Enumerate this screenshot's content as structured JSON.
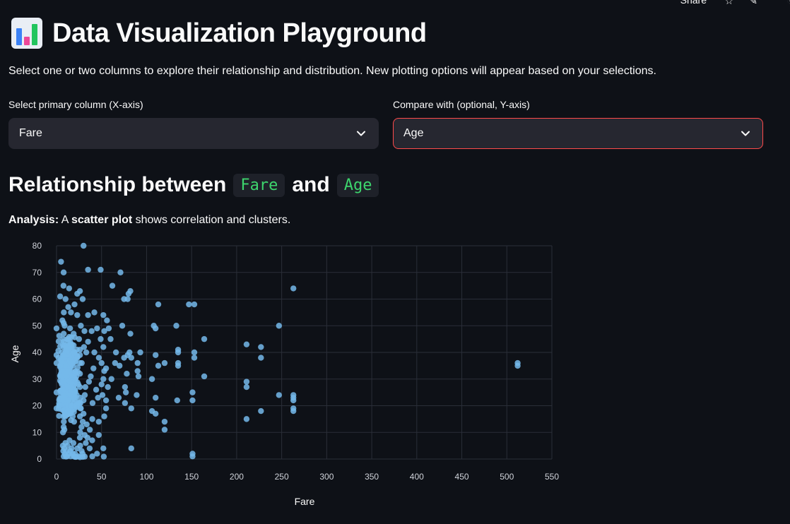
{
  "header": {
    "share_label": "Share",
    "title": "Data Visualization Playground"
  },
  "description": "Select one or two columns to explore their relationship and distribution. New plotting options will appear based on your selections.",
  "primary_select": {
    "label": "Select primary column (X-axis)",
    "value": "Fare"
  },
  "compare_select": {
    "label": "Compare with (optional, Y-axis)",
    "value": "Age"
  },
  "relationship": {
    "prefix": "Relationship between",
    "x_col": "Fare",
    "joiner": "and",
    "y_col": "Age"
  },
  "analysis": {
    "label": "Analysis:",
    "text_before": " A ",
    "emphasis": "scatter plot",
    "text_after": " shows correlation and clusters."
  },
  "colors": {
    "accent_border": "#ff4b4b",
    "code_text": "#3dd56d",
    "point": "#74b9ea",
    "grid": "#2a2e38"
  },
  "chart_data": {
    "type": "scatter",
    "xlabel": "Fare",
    "ylabel": "Age",
    "xlim": [
      0,
      550
    ],
    "ylim": [
      0,
      80
    ],
    "x_ticks": [
      0,
      50,
      100,
      150,
      200,
      250,
      300,
      350,
      400,
      450,
      500,
      550
    ],
    "y_ticks": [
      0,
      10,
      20,
      30,
      40,
      50,
      60,
      70,
      80
    ],
    "points": [
      [
        512,
        35
      ],
      [
        512,
        36
      ],
      [
        263,
        64
      ],
      [
        263,
        24
      ],
      [
        263,
        23
      ],
      [
        263,
        22
      ],
      [
        263,
        19
      ],
      [
        263,
        18
      ],
      [
        247,
        50
      ],
      [
        247,
        24
      ],
      [
        227,
        42
      ],
      [
        227,
        38
      ],
      [
        227,
        18
      ],
      [
        211,
        43
      ],
      [
        211,
        29
      ],
      [
        211,
        27
      ],
      [
        211,
        15
      ],
      [
        164,
        45
      ],
      [
        164,
        31
      ],
      [
        153,
        58
      ],
      [
        153,
        40
      ],
      [
        153,
        38
      ],
      [
        151,
        25
      ],
      [
        151,
        22
      ],
      [
        151,
        2
      ],
      [
        151,
        1
      ],
      [
        147,
        58
      ],
      [
        135,
        41
      ],
      [
        135,
        40
      ],
      [
        135,
        36
      ],
      [
        135,
        35
      ],
      [
        134,
        22
      ],
      [
        133,
        50
      ],
      [
        120,
        36
      ],
      [
        120,
        14
      ],
      [
        120,
        11
      ],
      [
        113,
        58
      ],
      [
        113,
        35
      ],
      [
        110,
        49
      ],
      [
        110,
        39
      ],
      [
        110,
        23
      ],
      [
        110,
        17
      ],
      [
        108,
        50
      ],
      [
        106,
        30
      ],
      [
        106,
        18
      ],
      [
        93,
        40
      ],
      [
        91,
        31
      ],
      [
        90,
        36
      ],
      [
        90,
        33
      ],
      [
        89,
        24
      ],
      [
        83,
        4
      ],
      [
        83,
        38
      ],
      [
        83,
        19
      ],
      [
        82,
        63
      ],
      [
        82,
        47
      ],
      [
        81,
        40
      ],
      [
        80,
        62
      ],
      [
        79,
        60
      ],
      [
        79,
        39
      ],
      [
        78,
        32
      ],
      [
        77,
        25
      ],
      [
        76,
        21
      ],
      [
        76,
        27
      ],
      [
        75,
        60
      ],
      [
        75,
        38
      ],
      [
        73,
        50
      ],
      [
        71,
        70
      ],
      [
        70,
        35
      ],
      [
        69,
        23
      ],
      [
        66,
        40
      ],
      [
        65,
        36
      ],
      [
        62,
        65
      ],
      [
        61,
        30
      ],
      [
        60,
        45
      ],
      [
        58,
        49
      ],
      [
        57,
        27
      ],
      [
        56,
        52
      ],
      [
        55,
        34
      ],
      [
        55,
        22
      ],
      [
        55,
        19
      ],
      [
        53,
        48
      ],
      [
        53,
        33
      ],
      [
        53,
        16
      ],
      [
        52,
        54
      ],
      [
        52,
        42
      ],
      [
        52,
        30
      ],
      [
        51,
        24
      ],
      [
        50,
        36
      ],
      [
        50,
        28
      ],
      [
        49,
        71
      ],
      [
        49,
        45
      ],
      [
        47,
        38
      ],
      [
        46,
        23
      ],
      [
        45,
        49
      ],
      [
        44,
        26
      ],
      [
        42,
        55
      ],
      [
        42,
        40
      ],
      [
        41,
        34
      ],
      [
        40,
        21
      ],
      [
        39,
        48
      ],
      [
        38,
        31
      ],
      [
        36,
        29
      ],
      [
        35,
        71
      ],
      [
        35,
        54
      ],
      [
        35,
        44
      ],
      [
        33,
        40
      ],
      [
        32,
        27
      ],
      [
        31,
        48
      ],
      [
        30,
        80
      ],
      [
        30,
        22
      ],
      [
        29,
        60
      ],
      [
        28,
        36
      ],
      [
        27,
        50
      ],
      [
        27,
        19
      ],
      [
        26,
        63
      ],
      [
        26,
        41
      ],
      [
        26,
        32
      ],
      [
        26,
        27
      ],
      [
        25,
        45
      ],
      [
        24,
        21
      ],
      [
        23,
        62
      ],
      [
        23,
        54
      ],
      [
        23,
        38
      ],
      [
        21,
        30
      ],
      [
        20,
        58
      ],
      [
        20,
        40
      ],
      [
        19,
        47
      ],
      [
        18,
        35
      ],
      [
        16,
        55
      ],
      [
        16,
        26
      ],
      [
        15,
        49
      ],
      [
        15,
        31
      ],
      [
        14,
        64
      ],
      [
        14,
        42
      ],
      [
        14,
        24
      ],
      [
        13,
        57
      ],
      [
        13,
        36
      ],
      [
        13,
        29
      ],
      [
        12,
        45
      ],
      [
        11,
        33
      ],
      [
        11,
        20
      ],
      [
        10,
        60
      ],
      [
        10,
        40
      ],
      [
        10,
        22
      ],
      [
        9,
        50
      ],
      [
        9,
        28
      ],
      [
        8,
        47
      ],
      [
        8,
        32
      ],
      [
        8,
        26
      ],
      [
        8,
        18
      ],
      [
        7.9,
        70
      ],
      [
        7.9,
        38
      ],
      [
        7.9,
        30
      ],
      [
        7.8,
        42
      ],
      [
        7.8,
        21
      ],
      [
        7.8,
        16
      ],
      [
        7.7,
        34
      ],
      [
        7.5,
        28
      ],
      [
        7.3,
        45
      ],
      [
        7.2,
        22
      ],
      [
        7.2,
        25
      ],
      [
        7.1,
        36
      ],
      [
        7.0,
        31
      ],
      [
        6.9,
        19
      ],
      [
        6.5,
        52
      ],
      [
        6,
        40
      ],
      [
        6,
        28
      ],
      [
        5,
        74
      ],
      [
        5,
        24
      ],
      [
        4,
        61
      ],
      [
        4,
        35
      ],
      [
        3,
        20
      ],
      [
        0,
        49
      ],
      [
        0,
        39
      ],
      [
        0,
        36
      ],
      [
        0,
        25
      ],
      [
        0,
        19
      ],
      [
        7.7,
        65
      ],
      [
        8.1,
        55
      ],
      [
        7.9,
        51
      ],
      [
        8.0,
        44
      ],
      [
        7.9,
        26
      ],
      [
        7.8,
        29
      ],
      [
        7.8,
        33
      ],
      [
        8.6,
        39
      ],
      [
        9.5,
        23
      ],
      [
        10.5,
        35
      ],
      [
        11.1,
        31
      ],
      [
        12.5,
        27
      ],
      [
        13.5,
        18
      ],
      [
        13.0,
        22
      ],
      [
        14.4,
        17
      ],
      [
        14.5,
        37
      ],
      [
        15.5,
        43
      ],
      [
        16.1,
        20
      ],
      [
        17.8,
        28
      ],
      [
        18.0,
        16
      ],
      [
        19.5,
        14
      ],
      [
        20.5,
        25
      ],
      [
        21.0,
        33
      ],
      [
        22.5,
        24
      ],
      [
        24.2,
        28
      ],
      [
        26.0,
        16
      ],
      [
        26.3,
        10
      ],
      [
        27.7,
        12
      ],
      [
        29.1,
        14
      ],
      [
        30.0,
        17
      ],
      [
        31.3,
        9
      ],
      [
        31.4,
        24
      ],
      [
        33.5,
        13
      ],
      [
        34.4,
        8
      ],
      [
        36.8,
        4
      ],
      [
        39.7,
        15
      ],
      [
        46.9,
        9
      ],
      [
        46.9,
        14
      ],
      [
        52.0,
        4
      ],
      [
        39.6,
        7
      ],
      [
        37.0,
        11
      ],
      [
        32.5,
        6
      ],
      [
        29.0,
        2
      ],
      [
        27.9,
        3
      ],
      [
        26.3,
        5
      ],
      [
        25.9,
        8
      ],
      [
        24.1,
        1
      ],
      [
        23.0,
        4
      ],
      [
        21.7,
        0.8
      ],
      [
        20.6,
        2
      ],
      [
        19.3,
        1
      ],
      [
        18.8,
        6
      ],
      [
        18.0,
        2
      ],
      [
        16.7,
        4
      ],
      [
        15.7,
        1
      ],
      [
        15.2,
        3
      ],
      [
        14.4,
        7
      ],
      [
        13.8,
        2
      ],
      [
        12.3,
        5
      ],
      [
        11.7,
        1
      ],
      [
        11.1,
        3
      ],
      [
        10.5,
        0.9
      ],
      [
        9.8,
        6
      ],
      [
        9.2,
        2
      ],
      [
        8.5,
        4
      ],
      [
        8.0,
        1
      ],
      [
        7.5,
        3
      ],
      [
        7.0,
        5
      ],
      [
        31.3,
        0.9
      ],
      [
        29.0,
        0.8
      ],
      [
        26.0,
        0.7
      ],
      [
        20.6,
        0.8
      ],
      [
        39.7,
        1
      ],
      [
        45.0,
        2
      ],
      [
        52.5,
        0.9
      ],
      [
        7.2,
        10
      ],
      [
        7.9,
        12
      ],
      [
        8.1,
        14
      ],
      [
        8.7,
        11
      ],
      [
        9.8,
        16
      ],
      [
        26.5,
        19
      ],
      [
        26.5,
        21
      ],
      [
        26.5,
        23
      ],
      [
        13.0,
        45
      ],
      [
        13.0,
        33
      ],
      [
        26.0,
        36
      ],
      [
        26.0,
        39
      ],
      [
        30.5,
        42
      ]
    ]
  }
}
